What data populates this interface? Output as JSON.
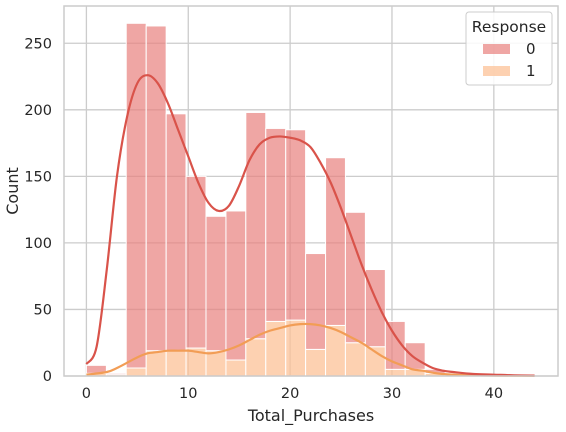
{
  "chart_data": {
    "type": "bar",
    "stacked": true,
    "xlabel": "Total_Purchases",
    "ylabel": "Count",
    "xlim": [
      -2.2,
      46.3
    ],
    "ylim": [
      0,
      278
    ],
    "x_ticks": [
      0,
      10,
      20,
      30,
      40
    ],
    "y_ticks": [
      0,
      50,
      100,
      150,
      200,
      250
    ],
    "grid": true,
    "legend": {
      "title": "Response",
      "position": "top-right"
    },
    "bin_edges": [
      0,
      1.96,
      3.91,
      5.87,
      7.83,
      9.78,
      11.74,
      13.7,
      15.65,
      17.61,
      19.57,
      21.52,
      23.48,
      25.43,
      27.39,
      29.35,
      31.3,
      33.26,
      35.22,
      37.17,
      39.13,
      41.09,
      43.04
    ],
    "series": [
      {
        "name": "0",
        "color": "#e8807d",
        "values": [
          6,
          1,
          259,
          244,
          178,
          129,
          101,
          112,
          170,
          145,
          143,
          72,
          126,
          98,
          58,
          36,
          20,
          3,
          1,
          0,
          0,
          1
        ],
        "kde": [
          [
            0,
            9
          ],
          [
            1,
            22
          ],
          [
            2,
            80
          ],
          [
            3,
            150
          ],
          [
            4,
            195
          ],
          [
            5,
            220
          ],
          [
            6,
            226
          ],
          [
            7,
            220
          ],
          [
            8,
            205
          ],
          [
            9,
            185
          ],
          [
            10,
            165
          ],
          [
            11,
            145
          ],
          [
            12,
            130
          ],
          [
            13,
            124
          ],
          [
            14,
            128
          ],
          [
            15,
            143
          ],
          [
            16,
            162
          ],
          [
            17,
            174
          ],
          [
            18,
            179
          ],
          [
            19,
            180
          ],
          [
            20,
            179
          ],
          [
            21,
            177
          ],
          [
            22,
            172
          ],
          [
            23,
            160
          ],
          [
            24,
            145
          ],
          [
            25,
            126
          ],
          [
            26,
            105
          ],
          [
            27,
            84
          ],
          [
            28,
            65
          ],
          [
            29,
            48
          ],
          [
            30,
            34
          ],
          [
            31,
            23
          ],
          [
            32,
            15
          ],
          [
            33,
            10
          ],
          [
            34,
            6
          ],
          [
            35,
            4
          ],
          [
            36,
            3
          ],
          [
            38,
            1.5
          ],
          [
            40,
            1
          ],
          [
            42,
            0.5
          ],
          [
            44,
            0.3
          ]
        ]
      },
      {
        "name": "1",
        "color": "#fcc197",
        "values": [
          2,
          1,
          6,
          19,
          19,
          21,
          19,
          12,
          28,
          41,
          42,
          20,
          38,
          25,
          22,
          5,
          5,
          2,
          0,
          0,
          0,
          0
        ],
        "kde": [
          [
            0,
            1
          ],
          [
            2,
            3
          ],
          [
            3,
            6
          ],
          [
            4,
            10
          ],
          [
            5,
            14
          ],
          [
            6,
            17
          ],
          [
            7,
            18
          ],
          [
            8,
            19
          ],
          [
            9,
            19
          ],
          [
            10,
            19
          ],
          [
            11,
            18
          ],
          [
            12,
            17
          ],
          [
            13,
            18
          ],
          [
            14,
            20
          ],
          [
            15,
            23
          ],
          [
            16,
            27
          ],
          [
            17,
            31
          ],
          [
            18,
            34
          ],
          [
            19,
            36
          ],
          [
            20,
            38
          ],
          [
            21,
            39
          ],
          [
            22,
            39
          ],
          [
            23,
            38
          ],
          [
            24,
            36
          ],
          [
            25,
            33
          ],
          [
            26,
            29
          ],
          [
            27,
            25
          ],
          [
            28,
            20
          ],
          [
            29,
            15
          ],
          [
            30,
            11
          ],
          [
            31,
            8
          ],
          [
            32,
            5
          ],
          [
            33,
            4
          ],
          [
            34,
            2.5
          ],
          [
            35,
            1.5
          ],
          [
            37,
            0.7
          ],
          [
            40,
            0.3
          ],
          [
            44,
            0.1
          ]
        ]
      }
    ]
  },
  "colors": {
    "series_0_fill": "#e8807d",
    "series_0_line": "#d9534a",
    "series_1_fill": "#fcc197",
    "series_1_line": "#f29d55",
    "grid": "#cccccc",
    "spine": "#cccccc",
    "text": "#262626"
  }
}
